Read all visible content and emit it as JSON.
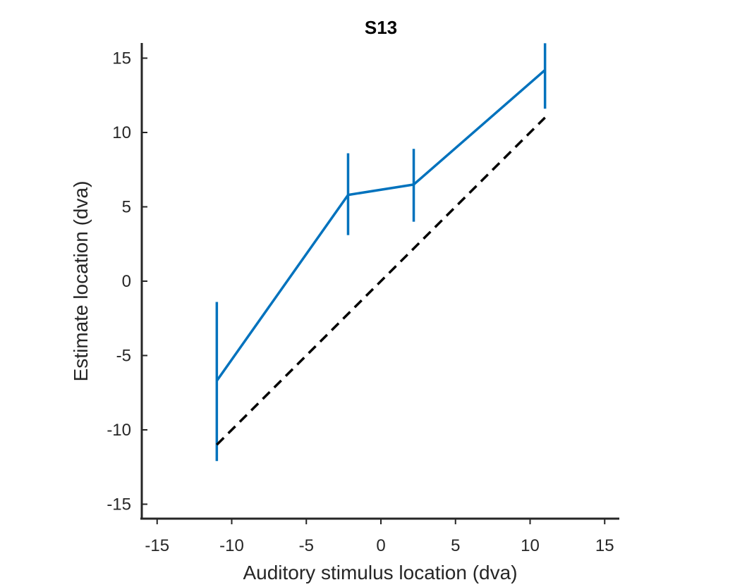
{
  "chart_data": {
    "type": "line",
    "title": "S13",
    "xlabel": "Auditory stimulus location (dva)",
    "ylabel": "Estimate location (dva)",
    "xlim": [
      -16,
      16
    ],
    "ylim": [
      -16,
      16
    ],
    "xticks": [
      -15,
      -10,
      -5,
      0,
      5,
      10,
      15
    ],
    "yticks": [
      -15,
      -10,
      -5,
      0,
      5,
      10,
      15
    ],
    "xtick_labels": [
      "-15",
      "-10",
      "-5",
      "0",
      "5",
      "10",
      "15"
    ],
    "ytick_labels": [
      "-15",
      "-10",
      "-5",
      "0",
      "5",
      "10",
      "15"
    ],
    "grid": false,
    "series": [
      {
        "color": "#0072BD",
        "style": "solid",
        "x": [
          -11,
          -2.2,
          2.2,
          11
        ],
        "y": [
          -6.7,
          5.8,
          6.5,
          14.2
        ],
        "err_low": [
          -12.1,
          3.1,
          4.0,
          11.6
        ],
        "err_high": [
          -1.4,
          8.6,
          8.9,
          16.0
        ]
      },
      {
        "color": "#000000",
        "style": "dashed",
        "x": [
          -11,
          11
        ],
        "y": [
          -11,
          11
        ]
      }
    ]
  }
}
